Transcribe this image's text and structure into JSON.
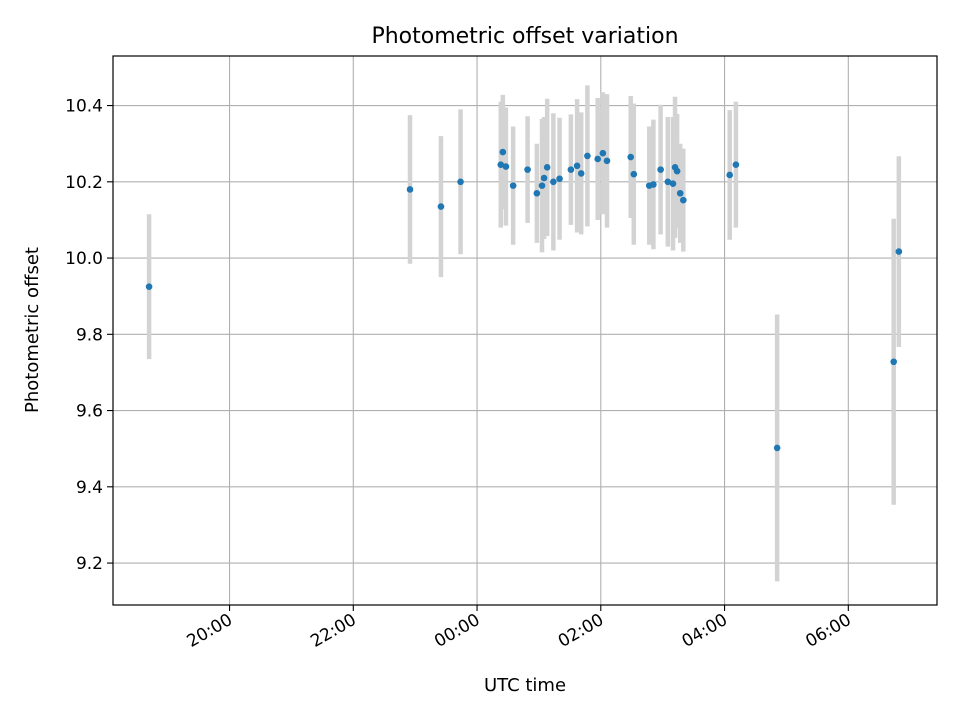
{
  "chart_data": {
    "type": "scatter",
    "title": "Photometric offset variation",
    "xlabel": "UTC time",
    "ylabel": "Photometric offset",
    "xlim": [
      "18:07",
      "07:26"
    ],
    "ylim": [
      9.09,
      10.53
    ],
    "grid": true,
    "x_ticks": [
      "20:00",
      "22:00",
      "00:00",
      "02:00",
      "04:00",
      "06:00"
    ],
    "y_ticks": [
      9.2,
      9.4,
      9.6,
      9.8,
      10.0,
      10.2,
      10.4
    ],
    "point_color": "#1f77b4",
    "errorbar_color": "#d3d3d3",
    "points": [
      {
        "x": "18:42",
        "y": 9.925,
        "err": 0.19
      },
      {
        "x": "22:55",
        "y": 10.18,
        "err": 0.195
      },
      {
        "x": "23:25",
        "y": 10.135,
        "err": 0.185
      },
      {
        "x": "23:44",
        "y": 10.2,
        "err": 0.19
      },
      {
        "x": "00:23",
        "y": 10.245,
        "err": 0.165
      },
      {
        "x": "00:25",
        "y": 10.278,
        "err": 0.15
      },
      {
        "x": "00:28",
        "y": 10.24,
        "err": 0.155
      },
      {
        "x": "00:35",
        "y": 10.19,
        "err": 0.155
      },
      {
        "x": "00:49",
        "y": 10.232,
        "err": 0.14
      },
      {
        "x": "00:58",
        "y": 10.17,
        "err": 0.13
      },
      {
        "x": "01:03",
        "y": 10.19,
        "err": 0.175
      },
      {
        "x": "01:05",
        "y": 10.21,
        "err": 0.16
      },
      {
        "x": "01:08",
        "y": 10.238,
        "err": 0.18
      },
      {
        "x": "01:14",
        "y": 10.2,
        "err": 0.18
      },
      {
        "x": "01:20",
        "y": 10.208,
        "err": 0.16
      },
      {
        "x": "01:31",
        "y": 10.232,
        "err": 0.145
      },
      {
        "x": "01:37",
        "y": 10.242,
        "err": 0.175
      },
      {
        "x": "01:41",
        "y": 10.222,
        "err": 0.16
      },
      {
        "x": "01:47",
        "y": 10.268,
        "err": 0.185
      },
      {
        "x": "01:57",
        "y": 10.26,
        "err": 0.16
      },
      {
        "x": "02:02",
        "y": 10.275,
        "err": 0.16
      },
      {
        "x": "02:06",
        "y": 10.255,
        "err": 0.175
      },
      {
        "x": "02:29",
        "y": 10.265,
        "err": 0.16
      },
      {
        "x": "02:32",
        "y": 10.22,
        "err": 0.185
      },
      {
        "x": "02:47",
        "y": 10.19,
        "err": 0.155
      },
      {
        "x": "02:51",
        "y": 10.193,
        "err": 0.17
      },
      {
        "x": "02:58",
        "y": 10.232,
        "err": 0.17
      },
      {
        "x": "03:05",
        "y": 10.2,
        "err": 0.17
      },
      {
        "x": "03:10",
        "y": 10.195,
        "err": 0.175
      },
      {
        "x": "03:12",
        "y": 10.238,
        "err": 0.185
      },
      {
        "x": "03:14",
        "y": 10.228,
        "err": 0.15
      },
      {
        "x": "03:17",
        "y": 10.17,
        "err": 0.13
      },
      {
        "x": "03:20",
        "y": 10.152,
        "err": 0.135
      },
      {
        "x": "04:05",
        "y": 10.218,
        "err": 0.17
      },
      {
        "x": "04:11",
        "y": 10.245,
        "err": 0.165
      },
      {
        "x": "04:51",
        "y": 9.502,
        "err": 0.35
      },
      {
        "x": "06:44",
        "y": 9.728,
        "err": 0.375
      },
      {
        "x": "06:49",
        "y": 10.017,
        "err": 0.25
      }
    ]
  }
}
